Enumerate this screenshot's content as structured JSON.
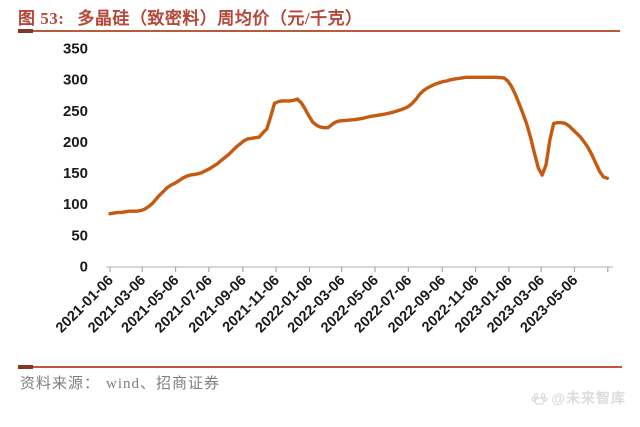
{
  "header": {
    "figure_label": "图 53:",
    "title": "多晶硅（致密料）周均价（元/千克）",
    "title_color": "#B5483A",
    "underline_color": "#BA5B3C"
  },
  "chart_data": {
    "type": "line",
    "title": "多晶硅（致密料）周均价（元/千克）",
    "unit": "元/千克",
    "ylim": [
      0,
      350
    ],
    "y_ticks": [
      350,
      300,
      250,
      200,
      150,
      100,
      50,
      0
    ],
    "x_tick_labels": [
      "2021-01-06",
      "2021-03-06",
      "2021-05-06",
      "2021-07-06",
      "2021-09-06",
      "2021-11-06",
      "2022-01-06",
      "2022-03-06",
      "2022-05-06",
      "2022-07-06",
      "2022-09-06",
      "2022-11-06",
      "2023-01-06",
      "2023-03-06",
      "2023-05-06"
    ],
    "x_domain": [
      "2021-01-06",
      "2023-07-06"
    ],
    "grid": "off",
    "legend": "none",
    "line_color": "#C55A11",
    "axis_color": "#BFBFBF",
    "tick_color": "#A6A6A6",
    "tick_label_color": "#1A1A1A",
    "series": [
      {
        "name": "多晶硅（致密料）周均价",
        "points": [
          [
            "2021-01-06",
            84
          ],
          [
            "2021-01-13",
            85
          ],
          [
            "2021-01-20",
            86
          ],
          [
            "2021-01-27",
            86
          ],
          [
            "2021-02-03",
            87
          ],
          [
            "2021-02-10",
            88
          ],
          [
            "2021-02-24",
            88
          ],
          [
            "2021-03-03",
            89
          ],
          [
            "2021-03-10",
            91
          ],
          [
            "2021-03-17",
            95
          ],
          [
            "2021-03-24",
            100
          ],
          [
            "2021-03-31",
            107
          ],
          [
            "2021-04-07",
            114
          ],
          [
            "2021-04-14",
            120
          ],
          [
            "2021-04-21",
            126
          ],
          [
            "2021-04-28",
            130
          ],
          [
            "2021-05-05",
            133
          ],
          [
            "2021-05-12",
            137
          ],
          [
            "2021-05-19",
            141
          ],
          [
            "2021-05-26",
            144
          ],
          [
            "2021-06-02",
            146
          ],
          [
            "2021-06-09",
            147
          ],
          [
            "2021-06-16",
            148
          ],
          [
            "2021-06-23",
            150
          ],
          [
            "2021-06-30",
            153
          ],
          [
            "2021-07-07",
            156
          ],
          [
            "2021-07-14",
            160
          ],
          [
            "2021-07-21",
            164
          ],
          [
            "2021-07-28",
            169
          ],
          [
            "2021-08-04",
            174
          ],
          [
            "2021-08-11",
            179
          ],
          [
            "2021-08-18",
            185
          ],
          [
            "2021-08-25",
            191
          ],
          [
            "2021-09-01",
            196
          ],
          [
            "2021-09-08",
            201
          ],
          [
            "2021-09-15",
            204
          ],
          [
            "2021-09-22",
            205
          ],
          [
            "2021-09-29",
            206
          ],
          [
            "2021-10-06",
            207
          ],
          [
            "2021-10-13",
            214
          ],
          [
            "2021-10-20",
            220
          ],
          [
            "2021-10-27",
            240
          ],
          [
            "2021-11-03",
            261
          ],
          [
            "2021-11-10",
            264
          ],
          [
            "2021-11-17",
            265
          ],
          [
            "2021-12-01",
            265
          ],
          [
            "2021-12-08",
            266
          ],
          [
            "2021-12-15",
            268
          ],
          [
            "2021-12-22",
            262
          ],
          [
            "2021-12-29",
            252
          ],
          [
            "2022-01-05",
            241
          ],
          [
            "2022-01-12",
            231
          ],
          [
            "2022-01-19",
            226
          ],
          [
            "2022-01-26",
            223
          ],
          [
            "2022-02-02",
            222
          ],
          [
            "2022-02-09",
            222
          ],
          [
            "2022-02-16",
            227
          ],
          [
            "2022-02-23",
            231
          ],
          [
            "2022-03-02",
            233
          ],
          [
            "2022-03-16",
            234
          ],
          [
            "2022-03-30",
            235
          ],
          [
            "2022-04-13",
            237
          ],
          [
            "2022-04-27",
            240
          ],
          [
            "2022-05-11",
            242
          ],
          [
            "2022-05-25",
            244
          ],
          [
            "2022-06-08",
            247
          ],
          [
            "2022-06-22",
            251
          ],
          [
            "2022-06-29",
            253
          ],
          [
            "2022-07-06",
            256
          ],
          [
            "2022-07-13",
            261
          ],
          [
            "2022-07-20",
            268
          ],
          [
            "2022-07-27",
            276
          ],
          [
            "2022-08-03",
            282
          ],
          [
            "2022-08-10",
            286
          ],
          [
            "2022-08-17",
            289
          ],
          [
            "2022-08-24",
            292
          ],
          [
            "2022-08-31",
            294
          ],
          [
            "2022-09-07",
            296
          ],
          [
            "2022-09-14",
            297
          ],
          [
            "2022-09-21",
            299
          ],
          [
            "2022-09-28",
            300
          ],
          [
            "2022-10-05",
            301
          ],
          [
            "2022-10-12",
            302
          ],
          [
            "2022-10-19",
            303
          ],
          [
            "2022-11-02",
            303
          ],
          [
            "2022-11-16",
            303
          ],
          [
            "2022-11-30",
            303
          ],
          [
            "2022-12-14",
            303
          ],
          [
            "2022-12-28",
            302
          ],
          [
            "2023-01-04",
            297
          ],
          [
            "2023-01-11",
            288
          ],
          [
            "2023-01-18",
            275
          ],
          [
            "2023-01-25",
            260
          ],
          [
            "2023-02-01",
            244
          ],
          [
            "2023-02-08",
            227
          ],
          [
            "2023-02-15",
            205
          ],
          [
            "2023-02-22",
            180
          ],
          [
            "2023-03-01",
            157
          ],
          [
            "2023-03-08",
            146
          ],
          [
            "2023-03-15",
            163
          ],
          [
            "2023-03-22",
            203
          ],
          [
            "2023-03-29",
            229
          ],
          [
            "2023-04-05",
            230
          ],
          [
            "2023-04-12",
            230
          ],
          [
            "2023-04-19",
            229
          ],
          [
            "2023-04-26",
            225
          ],
          [
            "2023-05-03",
            219
          ],
          [
            "2023-05-10",
            213
          ],
          [
            "2023-05-17",
            207
          ],
          [
            "2023-05-24",
            199
          ],
          [
            "2023-05-31",
            190
          ],
          [
            "2023-06-07",
            178
          ],
          [
            "2023-06-14",
            165
          ],
          [
            "2023-06-21",
            152
          ],
          [
            "2023-06-28",
            143
          ],
          [
            "2023-07-05",
            141
          ]
        ]
      }
    ]
  },
  "footer": {
    "source_label": "资料来源：",
    "source_value": "wind、招商证券",
    "divider_color": "#C0573A"
  },
  "watermark": {
    "text": "@未来智库",
    "icon": "paw-icon",
    "color": "#DCDCDC"
  }
}
